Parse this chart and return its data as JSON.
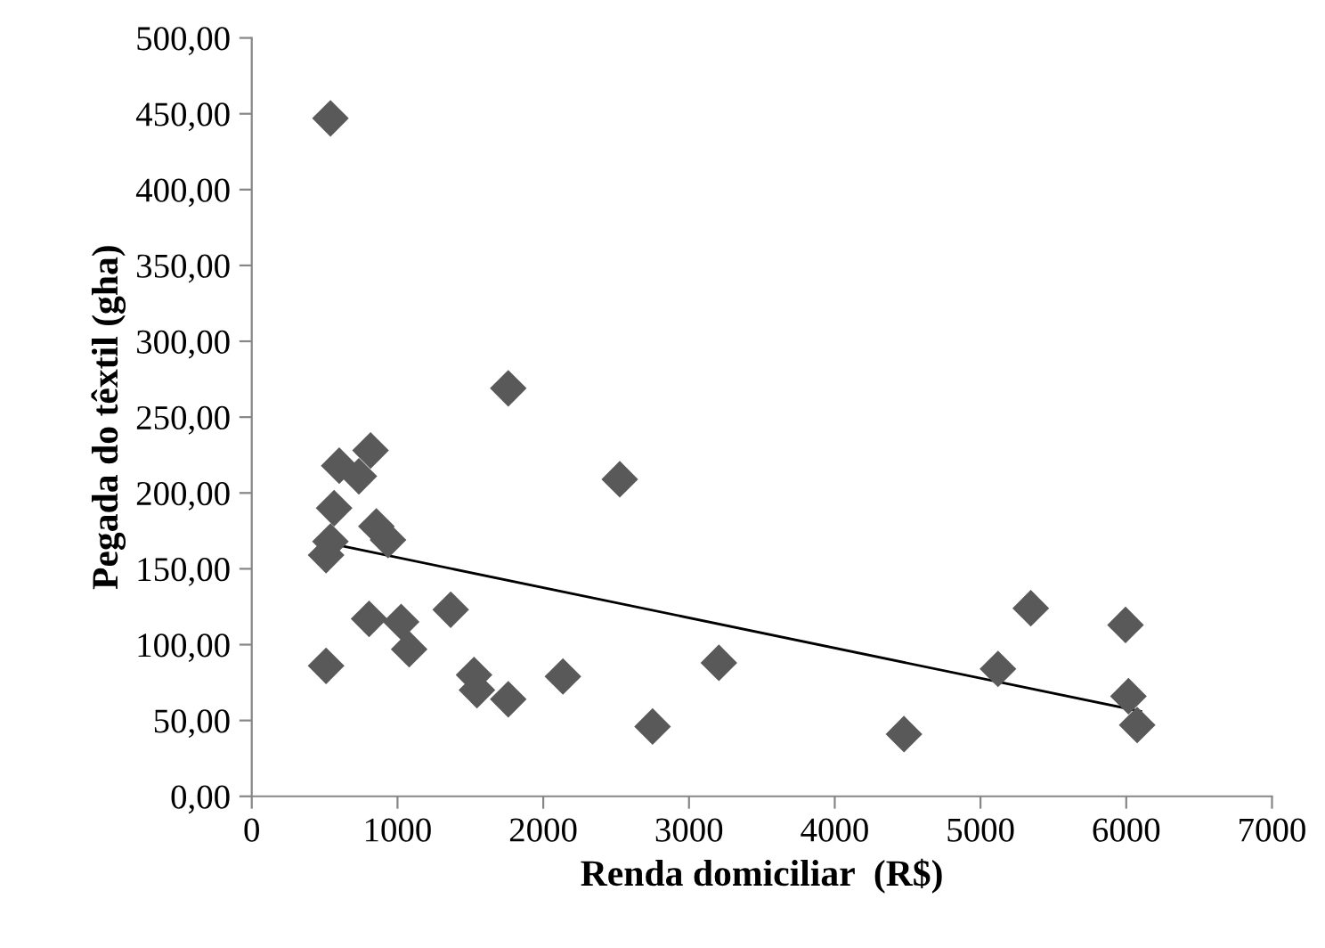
{
  "chart_data": {
    "type": "scatter",
    "xlabel": "Renda domiciliar  (R$)",
    "ylabel": "Pegada do têxtil (gha)",
    "xlim": [
      0,
      7000
    ],
    "xticks": [
      0,
      1000,
      2000,
      3000,
      4000,
      5000,
      6000,
      7000
    ],
    "ylim": [
      0,
      500
    ],
    "yticks": [
      {
        "value": 0,
        "label": "0,00"
      },
      {
        "value": 50,
        "label": "50,00"
      },
      {
        "value": 100,
        "label": "100,00"
      },
      {
        "value": 150,
        "label": "150,00"
      },
      {
        "value": 200,
        "label": "200,00"
      },
      {
        "value": 250,
        "label": "250,00"
      },
      {
        "value": 300,
        "label": "300,00"
      },
      {
        "value": 350,
        "label": "350,00"
      },
      {
        "value": 400,
        "label": "400,00"
      },
      {
        "value": 450,
        "label": "450,00"
      },
      {
        "value": 500,
        "label": "500,00"
      }
    ],
    "grid": false,
    "legend": false,
    "marker": "diamond",
    "series": [
      {
        "color": "#595959",
        "x": [
          540,
          1760,
          815,
          600,
          735,
          2525,
          565,
          855,
          935,
          540,
          510,
          1365,
          805,
          1025,
          1080,
          510,
          1525,
          1545,
          1760,
          2135,
          2750,
          3205,
          4475,
          5120,
          5345,
          5995,
          6015,
          6075
        ],
        "values": [
          447,
          269,
          228,
          218,
          211,
          209,
          190,
          178,
          169,
          168,
          159,
          123,
          117,
          115,
          97,
          86,
          80,
          70,
          64,
          79,
          46,
          88,
          41,
          84,
          124,
          113,
          66,
          47
        ]
      },
      {
        "type": "line",
        "color": "#000000",
        "marker": "none",
        "x": [
          520,
          6100
        ],
        "values": [
          167,
          56
        ]
      }
    ]
  }
}
